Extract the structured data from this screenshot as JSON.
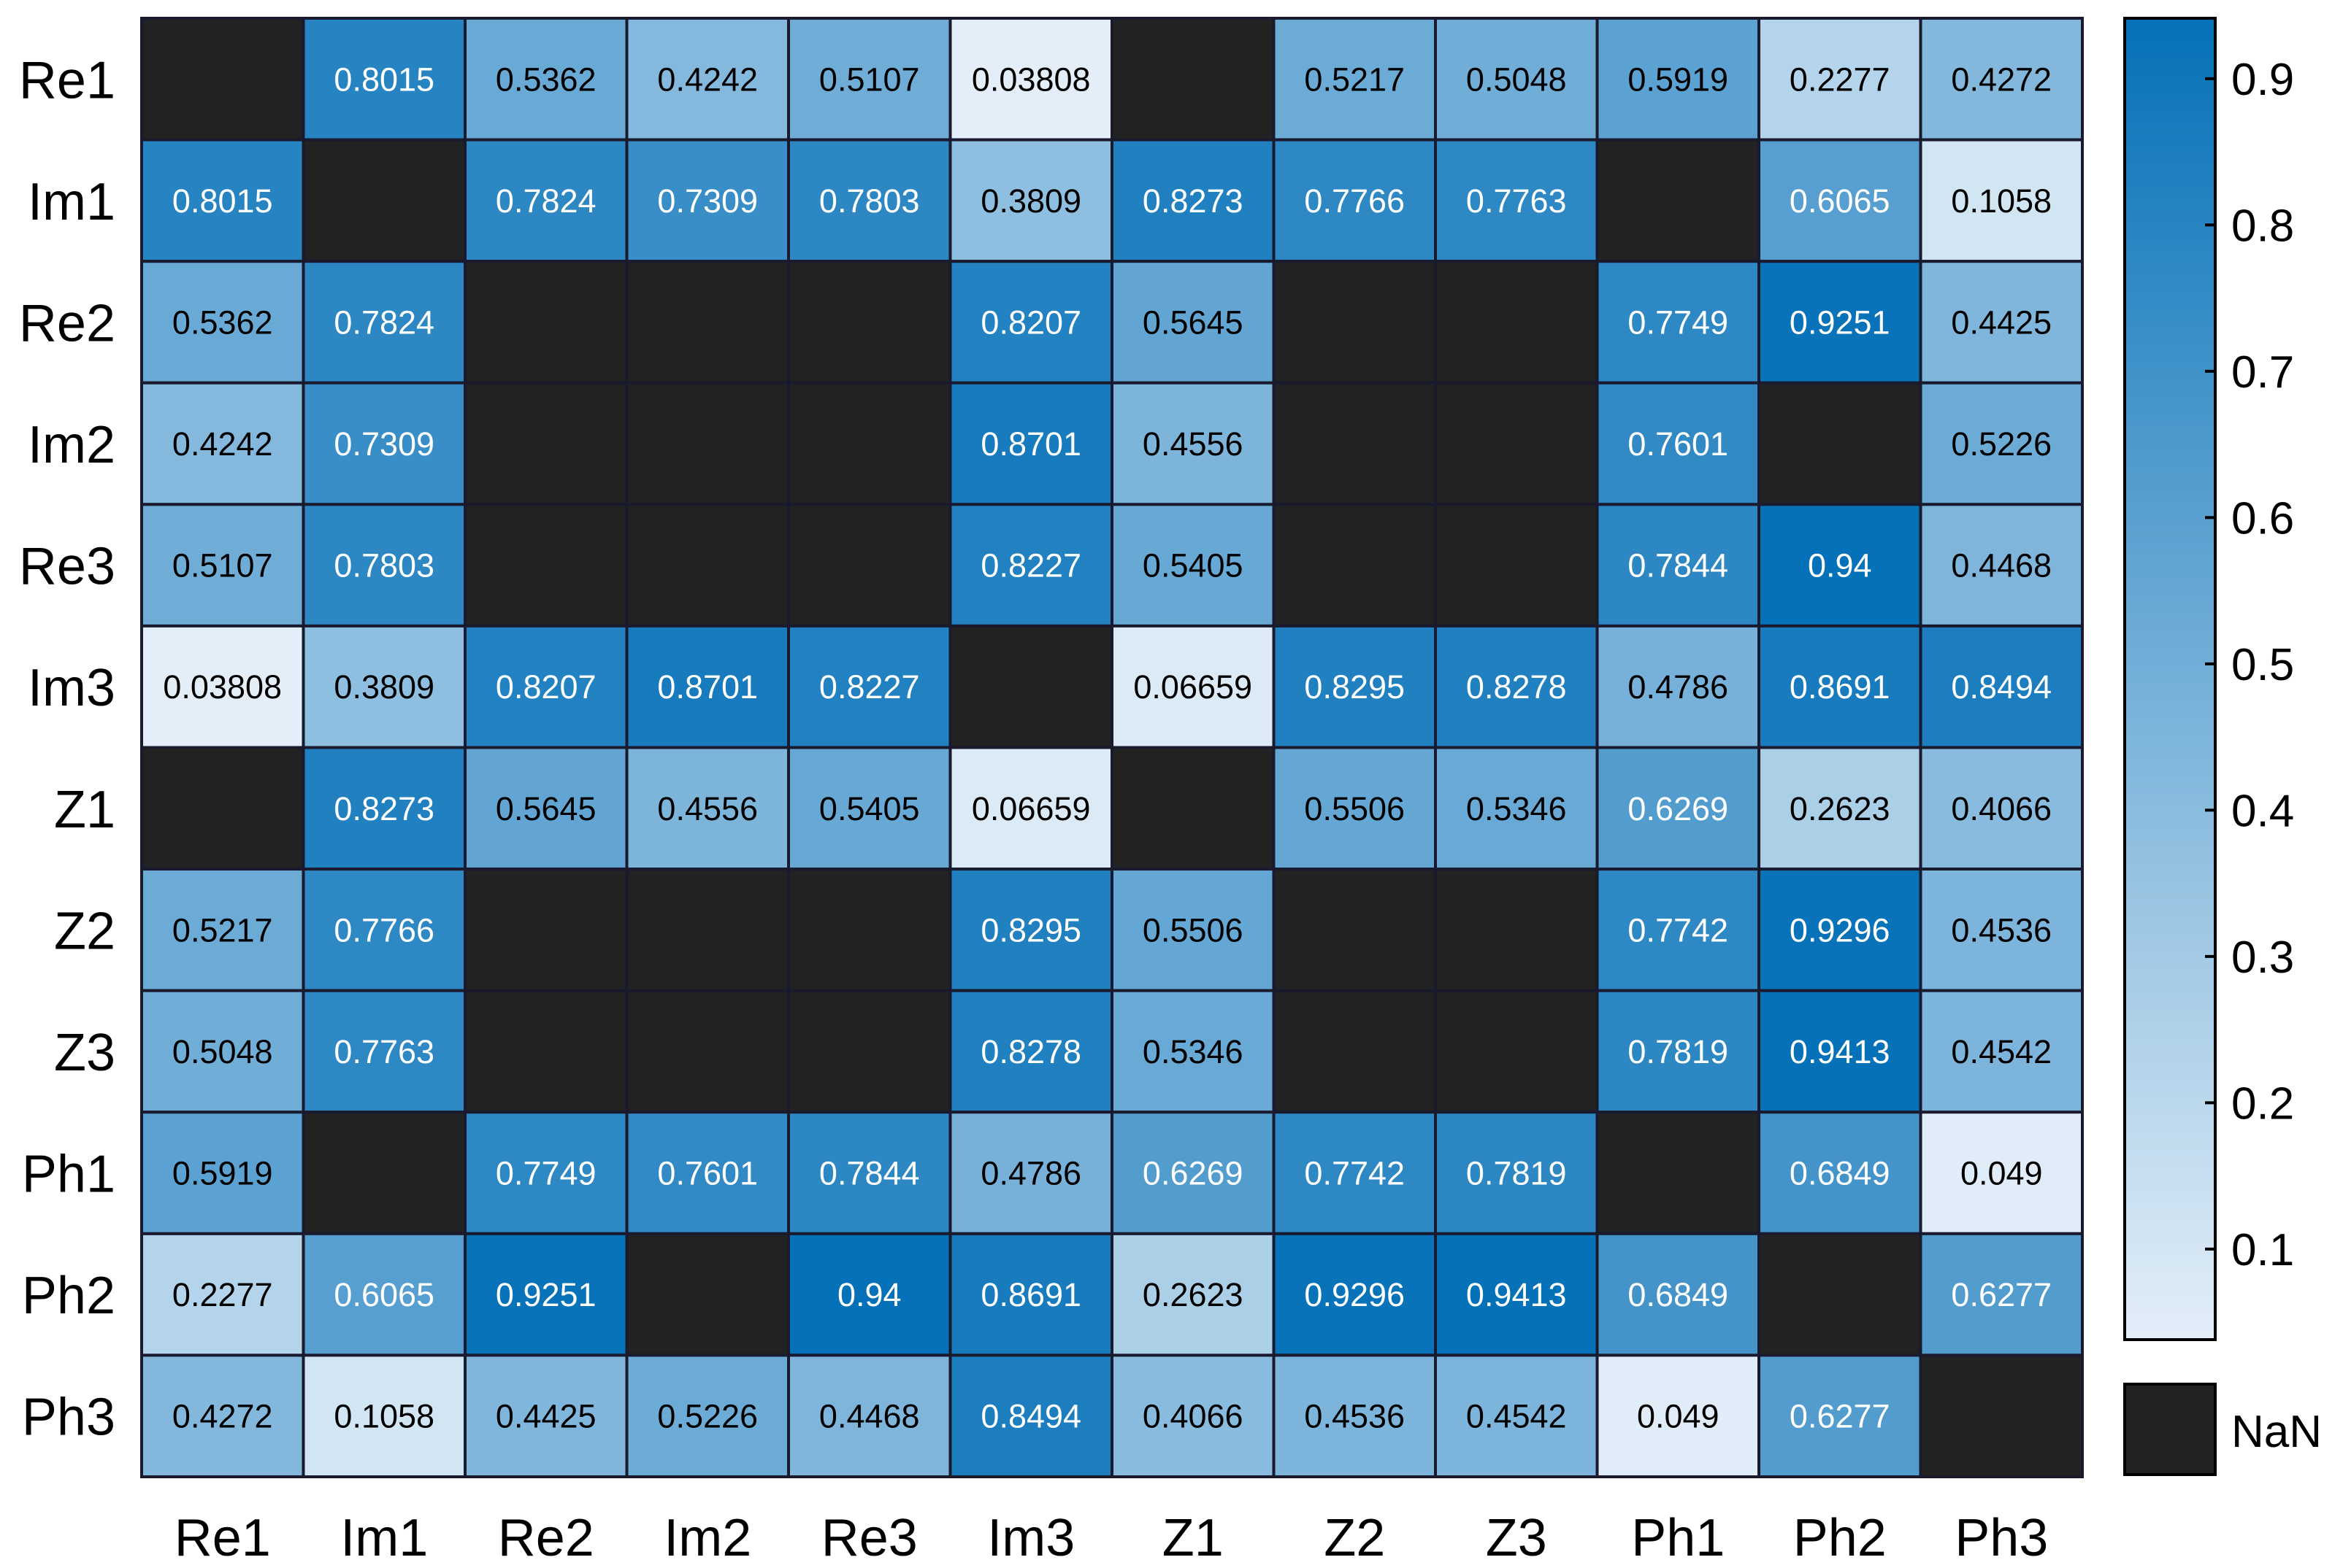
{
  "chart_data": {
    "type": "heatmap",
    "title": "",
    "xlabel": "",
    "ylabel": "",
    "labels": [
      "Re1",
      "Im1",
      "Re2",
      "Im2",
      "Re3",
      "Im3",
      "Z1",
      "Z2",
      "Z3",
      "Ph1",
      "Ph2",
      "Ph3"
    ],
    "values": [
      [
        null,
        "0.8015",
        "0.5362",
        "0.4242",
        "0.5107",
        "0.03808",
        null,
        "0.5217",
        "0.5048",
        "0.5919",
        "0.2277",
        "0.4272"
      ],
      [
        "0.8015",
        null,
        "0.7824",
        "0.7309",
        "0.7803",
        "0.3809",
        "0.8273",
        "0.7766",
        "0.7763",
        null,
        "0.6065",
        "0.1058"
      ],
      [
        "0.5362",
        "0.7824",
        null,
        null,
        null,
        "0.8207",
        "0.5645",
        null,
        null,
        "0.7749",
        "0.9251",
        "0.4425"
      ],
      [
        "0.4242",
        "0.7309",
        null,
        null,
        null,
        "0.8701",
        "0.4556",
        null,
        null,
        "0.7601",
        null,
        "0.5226"
      ],
      [
        "0.5107",
        "0.7803",
        null,
        null,
        null,
        "0.8227",
        "0.5405",
        null,
        null,
        "0.7844",
        "0.94",
        "0.4468"
      ],
      [
        "0.03808",
        "0.3809",
        "0.8207",
        "0.8701",
        "0.8227",
        null,
        "0.06659",
        "0.8295",
        "0.8278",
        "0.4786",
        "0.8691",
        "0.8494"
      ],
      [
        null,
        "0.8273",
        "0.5645",
        "0.4556",
        "0.5405",
        "0.06659",
        null,
        "0.5506",
        "0.5346",
        "0.6269",
        "0.2623",
        "0.4066"
      ],
      [
        "0.5217",
        "0.7766",
        null,
        null,
        null,
        "0.8295",
        "0.5506",
        null,
        null,
        "0.7742",
        "0.9296",
        "0.4536"
      ],
      [
        "0.5048",
        "0.7763",
        null,
        null,
        null,
        "0.8278",
        "0.5346",
        null,
        null,
        "0.7819",
        "0.9413",
        "0.4542"
      ],
      [
        "0.5919",
        null,
        "0.7749",
        "0.7601",
        "0.7844",
        "0.4786",
        "0.6269",
        "0.7742",
        "0.7819",
        null,
        "0.6849",
        "0.049"
      ],
      [
        "0.2277",
        "0.6065",
        "0.9251",
        null,
        "0.94",
        "0.8691",
        "0.2623",
        "0.9296",
        "0.9413",
        "0.6849",
        null,
        "0.6277"
      ],
      [
        "0.4272",
        "0.1058",
        "0.4425",
        "0.5226",
        "0.4468",
        "0.8494",
        "0.4066",
        "0.4536",
        "0.4542",
        "0.049",
        "0.6277",
        null
      ]
    ],
    "colorbar": {
      "range": [
        0.0381,
        0.9413
      ],
      "ticks": [
        "0.1",
        "0.2",
        "0.3",
        "0.4",
        "0.5",
        "0.6",
        "0.7",
        "0.8",
        "0.9"
      ],
      "low_color": "#e3eef8",
      "high_color": "#0571b8"
    },
    "nan_label": "NaN",
    "nan_color": "#222222",
    "grid_color": "#1a1a2e"
  }
}
